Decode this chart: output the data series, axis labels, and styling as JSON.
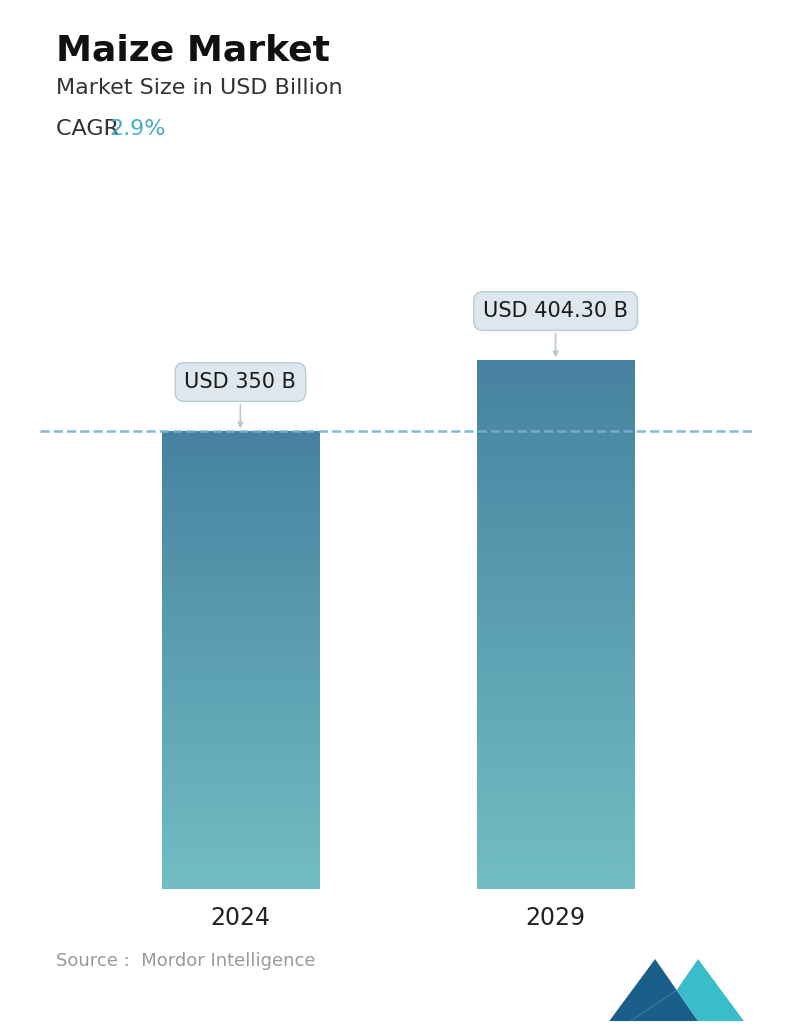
{
  "title": "Maize Market",
  "subtitle": "Market Size in USD Billion",
  "cagr_label": "CAGR ",
  "cagr_value": "2.9%",
  "cagr_color": "#4BACC6",
  "categories": [
    "2024",
    "2029"
  ],
  "values": [
    350,
    404.3
  ],
  "bar_labels": [
    "USD 350 B",
    "USD 404.30 B"
  ],
  "bar_top_color": "#4682A0",
  "bar_bottom_color": "#72BEC4",
  "dashed_line_color": "#7BAFD4",
  "dashed_line_value": 350,
  "source_text": "Source :  Mordor Intelligence",
  "source_color": "#999999",
  "background_color": "#ffffff",
  "title_fontsize": 26,
  "subtitle_fontsize": 16,
  "cagr_fontsize": 16,
  "xlabel_fontsize": 17,
  "annotation_fontsize": 15,
  "source_fontsize": 13,
  "bar_width": 0.22,
  "x_positions": [
    0.28,
    0.72
  ],
  "xlim": [
    0,
    1
  ],
  "ylim": [
    0,
    490
  ],
  "tooltip_facecolor": "#DDE6ED",
  "tooltip_edgecolor": "#B8C9D4",
  "logo_dark": "#1A5F8A",
  "logo_teal": "#3ABDC8"
}
